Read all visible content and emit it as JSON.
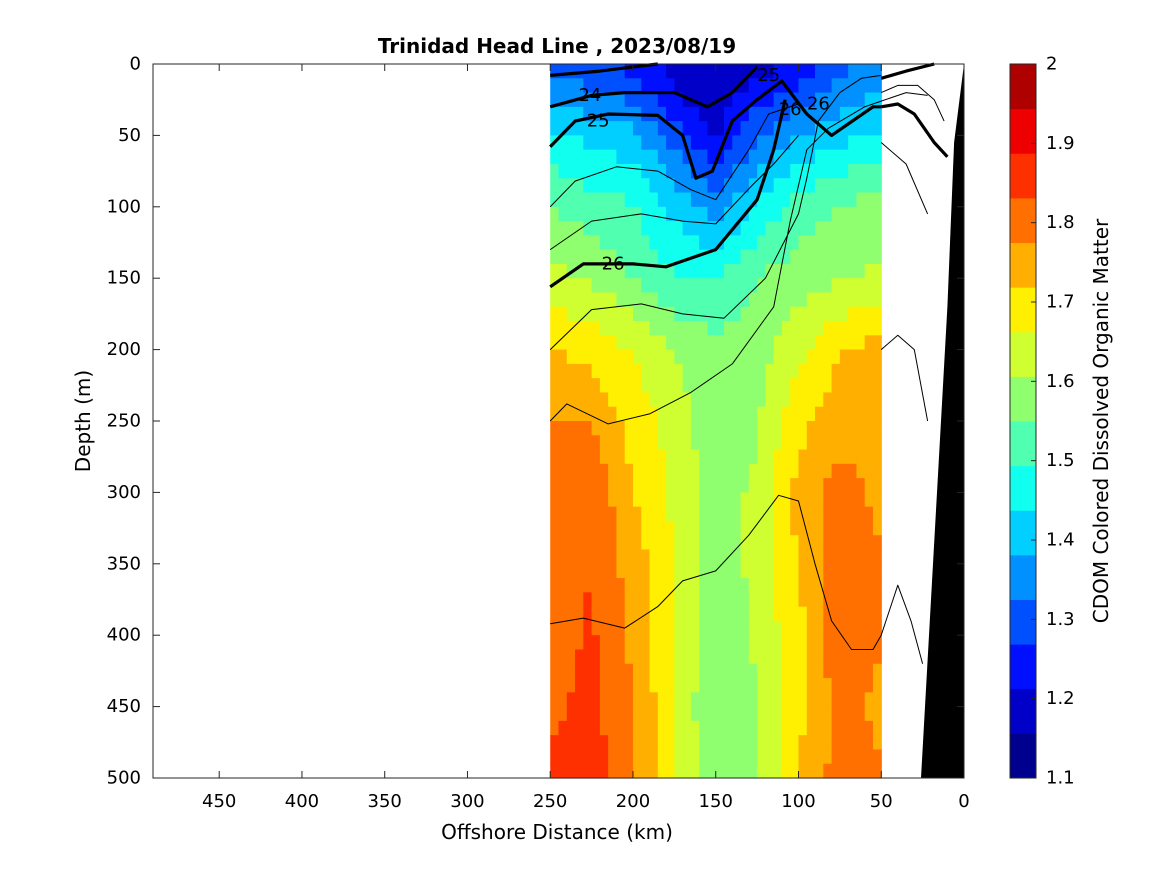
{
  "chart_data": {
    "type": "heatmap",
    "title": "Trinidad Head Line , 2023/08/19",
    "xlabel": "Offshore Distance (km)",
    "ylabel": "Depth (m)",
    "colorbar_label": "CDOM Colored Dissolved Organic Matter",
    "xlim": [
      490,
      0
    ],
    "ylim": [
      0,
      500
    ],
    "x_reversed": true,
    "x_ticks": [
      "450",
      "400",
      "350",
      "300",
      "250",
      "200",
      "150",
      "100",
      "50",
      "0"
    ],
    "x_tick_values": [
      450,
      400,
      350,
      300,
      250,
      200,
      150,
      100,
      50,
      0
    ],
    "y_ticks": [
      "0",
      "50",
      "100",
      "150",
      "200",
      "250",
      "300",
      "350",
      "400",
      "450",
      "500"
    ],
    "y_tick_values": [
      0,
      50,
      100,
      150,
      200,
      250,
      300,
      350,
      400,
      450,
      500
    ],
    "colorbar_ticks": [
      "1.1",
      "1.2",
      "1.3",
      "1.4",
      "1.5",
      "1.6",
      "1.7",
      "1.8",
      "1.9",
      "2"
    ],
    "colorbar_tick_values": [
      1.1,
      1.2,
      1.3,
      1.4,
      1.5,
      1.6,
      1.7,
      1.8,
      1.9,
      2.0
    ],
    "clim": [
      1.1,
      2.0
    ],
    "colormap": "jet",
    "colorbar_colors": [
      "#00008f",
      "#0000c8",
      "#0010ff",
      "#0050ff",
      "#0090ff",
      "#00cfff",
      "#10ffef",
      "#50ffaf",
      "#90ff6f",
      "#cfff30",
      "#ffef00",
      "#ffaf00",
      "#ff7000",
      "#ff3000",
      "#ef0000",
      "#af0000"
    ],
    "data_extent_km": [
      250,
      50
    ],
    "field": {
      "x": [
        250,
        225,
        200,
        175,
        150,
        125,
        100,
        75,
        50
      ],
      "depth": [
        0,
        25,
        50,
        100,
        150,
        200,
        250,
        300,
        350,
        400,
        450,
        500
      ],
      "values": [
        [
          1.3,
          1.28,
          1.25,
          1.2,
          1.15,
          1.18,
          1.22,
          1.3,
          1.35
        ],
        [
          1.38,
          1.35,
          1.32,
          1.22,
          1.18,
          1.25,
          1.3,
          1.36,
          1.4
        ],
        [
          1.45,
          1.42,
          1.4,
          1.3,
          1.2,
          1.32,
          1.38,
          1.42,
          1.45
        ],
        [
          1.55,
          1.52,
          1.5,
          1.42,
          1.35,
          1.45,
          1.52,
          1.55,
          1.58
        ],
        [
          1.62,
          1.6,
          1.55,
          1.5,
          1.5,
          1.55,
          1.58,
          1.6,
          1.62
        ],
        [
          1.72,
          1.7,
          1.66,
          1.6,
          1.56,
          1.58,
          1.65,
          1.72,
          1.74
        ],
        [
          1.78,
          1.77,
          1.7,
          1.64,
          1.56,
          1.6,
          1.7,
          1.75,
          1.74
        ],
        [
          1.8,
          1.82,
          1.72,
          1.65,
          1.58,
          1.62,
          1.74,
          1.8,
          1.76
        ],
        [
          1.8,
          1.83,
          1.75,
          1.66,
          1.58,
          1.62,
          1.72,
          1.82,
          1.78
        ],
        [
          1.8,
          1.84,
          1.76,
          1.66,
          1.56,
          1.62,
          1.7,
          1.82,
          1.78
        ],
        [
          1.82,
          1.85,
          1.78,
          1.66,
          1.55,
          1.6,
          1.7,
          1.8,
          1.76
        ],
        [
          1.84,
          1.86,
          1.78,
          1.66,
          1.56,
          1.6,
          1.72,
          1.8,
          1.78
        ]
      ]
    },
    "contour_labels": [
      "24",
      "25",
      "26",
      "25",
      "26",
      "26"
    ],
    "bathymetry_fill": "#000000",
    "contour_color": "#000000"
  }
}
